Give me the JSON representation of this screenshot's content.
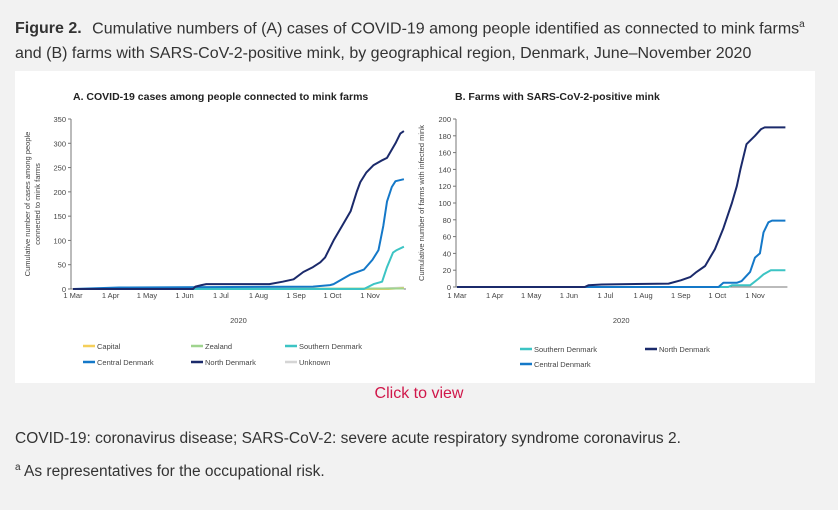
{
  "caption": {
    "label": "Figure 2.",
    "text_line1": "Cumulative numbers of (A) cases of COVID-19 among people identified as connected to mink farms",
    "sup": "a",
    "text_line2": "and (B) farms with SARS-CoV-2-positive mink, by geographical region, Denmark, June–November 2020"
  },
  "click_to_view": "Click to view",
  "footnotes": {
    "abbrev": "COVID-19: coronavirus disease; SARS-CoV-2: severe acute respiratory syndrome coronavirus 2.",
    "a_marker": "a",
    "a_text": "As representatives for the occupational risk."
  },
  "colors": {
    "Capital": "#f5cf5a",
    "Zealand": "#9fd48e",
    "Southern Denmark": "#3cc4c4",
    "Central Denmark": "#1478c8",
    "North Denmark": "#1b2a6b",
    "Unknown": "#d5d5d5"
  },
  "chart_data": [
    {
      "type": "line",
      "title": "A. COVID-19 cases among people connected to mink farms",
      "xlabel": "2020",
      "ylabel_line1": "Cumulative number of cases among people",
      "ylabel_line2": "connected to mink farms",
      "x_unit": "days since 1 Mar 2020",
      "xticks": [
        {
          "day": 0,
          "label": "1 Mar"
        },
        {
          "day": 31,
          "label": "1 Apr"
        },
        {
          "day": 61,
          "label": "1 May"
        },
        {
          "day": 92,
          "label": "1 Jun"
        },
        {
          "day": 122,
          "label": "1 Jul"
        },
        {
          "day": 153,
          "label": "1 Aug"
        },
        {
          "day": 184,
          "label": "1 Sep"
        },
        {
          "day": 214,
          "label": "1 Oct"
        },
        {
          "day": 245,
          "label": "1 Nov"
        }
      ],
      "yticks": [
        0,
        50,
        100,
        150,
        200,
        250,
        300,
        350
      ],
      "ylim": [
        0,
        350
      ],
      "xlim": [
        0,
        273
      ],
      "legend": [
        "Capital",
        "Zealand",
        "Southern Denmark",
        "Central Denmark",
        "North Denmark",
        "Unknown"
      ],
      "series": [
        {
          "name": "Unknown",
          "points": [
            [
              0,
              0
            ],
            [
              255,
              1
            ],
            [
              273,
              3
            ]
          ]
        },
        {
          "name": "Capital",
          "points": [
            [
              0,
              0
            ],
            [
              260,
              0
            ],
            [
              273,
              2
            ]
          ]
        },
        {
          "name": "Zealand",
          "points": [
            [
              0,
              0
            ],
            [
              273,
              1
            ]
          ]
        },
        {
          "name": "Southern Denmark",
          "points": [
            [
              0,
              0
            ],
            [
              240,
              0
            ],
            [
              248,
              10
            ],
            [
              255,
              15
            ],
            [
              259,
              45
            ],
            [
              264,
              75
            ],
            [
              267,
              80
            ],
            [
              273,
              87
            ]
          ]
        },
        {
          "name": "Central Denmark",
          "points": [
            [
              0,
              0
            ],
            [
              38,
              3
            ],
            [
              198,
              5
            ],
            [
              212,
              8
            ],
            [
              215,
              10
            ],
            [
              222,
              20
            ],
            [
              229,
              30
            ],
            [
              240,
              40
            ],
            [
              247,
              60
            ],
            [
              252,
              80
            ],
            [
              256,
              130
            ],
            [
              259,
              180
            ],
            [
              263,
              210
            ],
            [
              266,
              222
            ],
            [
              273,
              226
            ]
          ]
        },
        {
          "name": "North Denmark",
          "points": [
            [
              0,
              0
            ],
            [
              99,
              0
            ],
            [
              101,
              5
            ],
            [
              106,
              8
            ],
            [
              110,
              10
            ],
            [
              162,
              10
            ],
            [
              173,
              15
            ],
            [
              182,
              20
            ],
            [
              190,
              35
            ],
            [
              198,
              45
            ],
            [
              204,
              55
            ],
            [
              208,
              65
            ],
            [
              215,
              100
            ],
            [
              222,
              130
            ],
            [
              229,
              160
            ],
            [
              234,
              200
            ],
            [
              237,
              220
            ],
            [
              242,
              240
            ],
            [
              248,
              255
            ],
            [
              255,
              265
            ],
            [
              259,
              270
            ],
            [
              266,
              300
            ],
            [
              270,
              320
            ],
            [
              273,
              325
            ]
          ]
        }
      ]
    },
    {
      "type": "line",
      "title": "B. Farms with SARS-CoV-2-positive mink",
      "xlabel": "2020",
      "ylabel_line1": "Cumulative number of farms with infected mink",
      "x_unit": "days since 1 Mar 2020",
      "xticks": [
        {
          "day": 0,
          "label": "1 Mar"
        },
        {
          "day": 31,
          "label": "1 Apr"
        },
        {
          "day": 61,
          "label": "1 May"
        },
        {
          "day": 92,
          "label": "1 Jun"
        },
        {
          "day": 122,
          "label": "1 Jul"
        },
        {
          "day": 153,
          "label": "1 Aug"
        },
        {
          "day": 184,
          "label": "1 Sep"
        },
        {
          "day": 214,
          "label": "1 Oct"
        },
        {
          "day": 245,
          "label": "1 Nov"
        }
      ],
      "yticks": [
        0,
        20,
        40,
        60,
        80,
        100,
        120,
        140,
        160,
        180,
        200
      ],
      "ylim": [
        0,
        200
      ],
      "xlim": [
        0,
        270
      ],
      "legend": [
        "Southern Denmark",
        "North Denmark",
        "Central Denmark"
      ],
      "series": [
        {
          "name": "Southern Denmark",
          "points": [
            [
              0,
              0
            ],
            [
              223,
              0
            ],
            [
              226,
              2
            ],
            [
              241,
              2
            ],
            [
              248,
              10
            ],
            [
              252,
              15
            ],
            [
              258,
              20
            ],
            [
              270,
              20
            ]
          ]
        },
        {
          "name": "Central Denmark",
          "points": [
            [
              0,
              0
            ],
            [
              215,
              0
            ],
            [
              219,
              5
            ],
            [
              230,
              5
            ],
            [
              234,
              7
            ],
            [
              241,
              18
            ],
            [
              245,
              35
            ],
            [
              249,
              40
            ],
            [
              252,
              65
            ],
            [
              256,
              77
            ],
            [
              259,
              79
            ],
            [
              270,
              79
            ]
          ]
        },
        {
          "name": "North Denmark",
          "points": [
            [
              0,
              0
            ],
            [
              105,
              0
            ],
            [
              108,
              2
            ],
            [
              119,
              3
            ],
            [
              174,
              4
            ],
            [
              184,
              8
            ],
            [
              192,
              12
            ],
            [
              197,
              18
            ],
            [
              204,
              25
            ],
            [
              212,
              45
            ],
            [
              219,
              70
            ],
            [
              226,
              100
            ],
            [
              230,
              120
            ],
            [
              233,
              140
            ],
            [
              238,
              170
            ],
            [
              245,
              180
            ],
            [
              250,
              188
            ],
            [
              253,
              190
            ],
            [
              270,
              190
            ]
          ]
        }
      ]
    }
  ]
}
